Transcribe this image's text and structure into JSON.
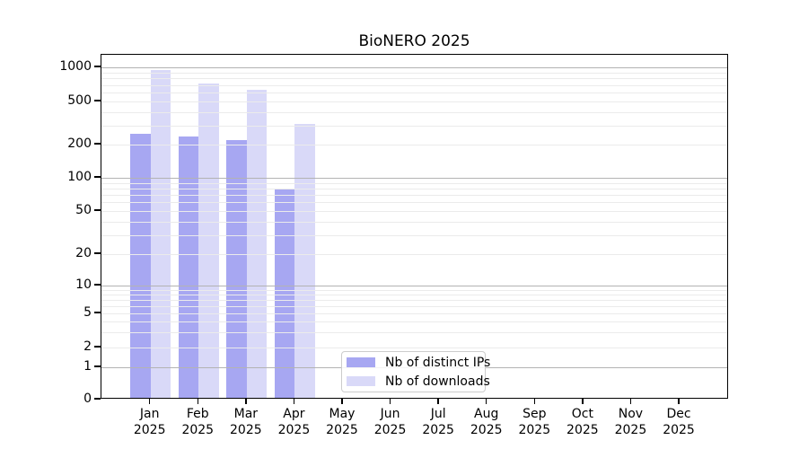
{
  "chart_data": {
    "type": "bar",
    "title": "BioNERO 2025",
    "months": [
      "Jan",
      "Feb",
      "Mar",
      "Apr",
      "May",
      "Jun",
      "Jul",
      "Aug",
      "Sep",
      "Oct",
      "Nov",
      "Dec"
    ],
    "year": "2025",
    "series": [
      {
        "name": "Nb of distinct IPs",
        "color": "#a7a7f2",
        "values": [
          250,
          237,
          220,
          78,
          0,
          0,
          0,
          0,
          0,
          0,
          0,
          0
        ]
      },
      {
        "name": "Nb of downloads",
        "color": "#d9d9f8",
        "values": [
          940,
          715,
          630,
          310,
          0,
          0,
          0,
          0,
          0,
          0,
          0,
          0
        ]
      }
    ],
    "y_ticks": [
      0,
      1,
      2,
      5,
      10,
      20,
      50,
      100,
      200,
      500,
      1000
    ],
    "y_minor_gridlines": [
      2,
      3,
      4,
      5,
      6,
      7,
      8,
      9,
      20,
      30,
      40,
      50,
      60,
      70,
      80,
      90,
      200,
      300,
      400,
      500,
      600,
      700,
      800,
      900
    ],
    "y_major_gridlines": [
      1,
      10,
      100,
      1000
    ],
    "scale": "symlog",
    "ylim": [
      0,
      1300
    ],
    "grid": true,
    "legend_position": "lower center",
    "colors": {
      "bar_dark": "#a7a7f2",
      "bar_light": "#d9d9f8",
      "grid_major": "#b3b3b3",
      "grid_minor": "#ebebeb",
      "axis": "#000000",
      "legend_border": "#cccccc"
    }
  }
}
